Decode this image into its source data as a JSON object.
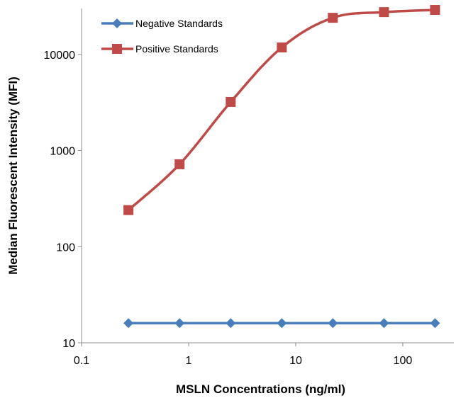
{
  "chart_data": {
    "type": "line",
    "title": "",
    "xlabel": "MSLN Concentrations (ng/ml)",
    "ylabel": "Median Fluorescent Intensity (MFI)",
    "xscale": "log",
    "yscale": "log",
    "xlim": [
      0.1,
      300
    ],
    "ylim": [
      10,
      30000
    ],
    "xticks": [
      0.1,
      1,
      10,
      100
    ],
    "xtick_labels": [
      "0.1",
      "1",
      "10",
      "100"
    ],
    "yticks": [
      10,
      100,
      1000,
      10000
    ],
    "ytick_labels": [
      "10",
      "100",
      "1000",
      "10000"
    ],
    "grid": false,
    "legend_position": "top-left",
    "series": [
      {
        "name": "Negative Standards",
        "color": "#4a7ebb",
        "marker": "diamond",
        "smooth": false,
        "x": [
          0.274,
          0.823,
          2.47,
          7.41,
          22.2,
          66.7,
          200
        ],
        "y": [
          16,
          16,
          16,
          16,
          16,
          16,
          16
        ]
      },
      {
        "name": "Positive Standards",
        "color": "#be4b48",
        "marker": "square",
        "smooth": true,
        "x": [
          0.274,
          0.823,
          2.47,
          7.41,
          22.2,
          66.7,
          200
        ],
        "y": [
          240,
          720,
          3200,
          11800,
          24000,
          27500,
          29000
        ]
      }
    ]
  }
}
